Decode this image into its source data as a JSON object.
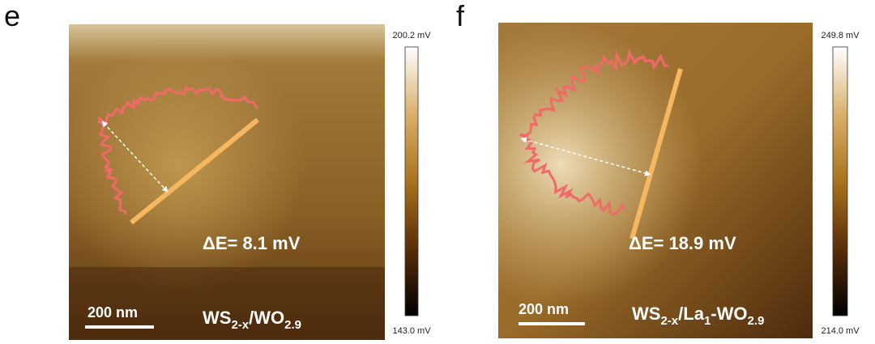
{
  "panels": [
    {
      "label": "e",
      "colorbar_max": "200.2 mV",
      "colorbar_min": "143.0 mV",
      "delta_e": "ΔE= 8.1 mV",
      "scale_bar": "200 nm",
      "sample": [
        {
          "text": "WS"
        },
        {
          "text": "2-x",
          "sub": true
        },
        {
          "text": "/WO"
        },
        {
          "text": "2.9",
          "sub": true
        }
      ]
    },
    {
      "label": "f",
      "colorbar_max": "249.8 mV",
      "colorbar_min": "214.0 mV",
      "delta_e": "ΔE= 18.9 mV",
      "scale_bar": "200 nm",
      "sample": [
        {
          "text": "WS"
        },
        {
          "text": "2-x",
          "sub": true
        },
        {
          "text": "/La"
        },
        {
          "text": "1",
          "sub": true
        },
        {
          "text": "-WO"
        },
        {
          "text": "2.9",
          "sub": true
        }
      ]
    }
  ]
}
